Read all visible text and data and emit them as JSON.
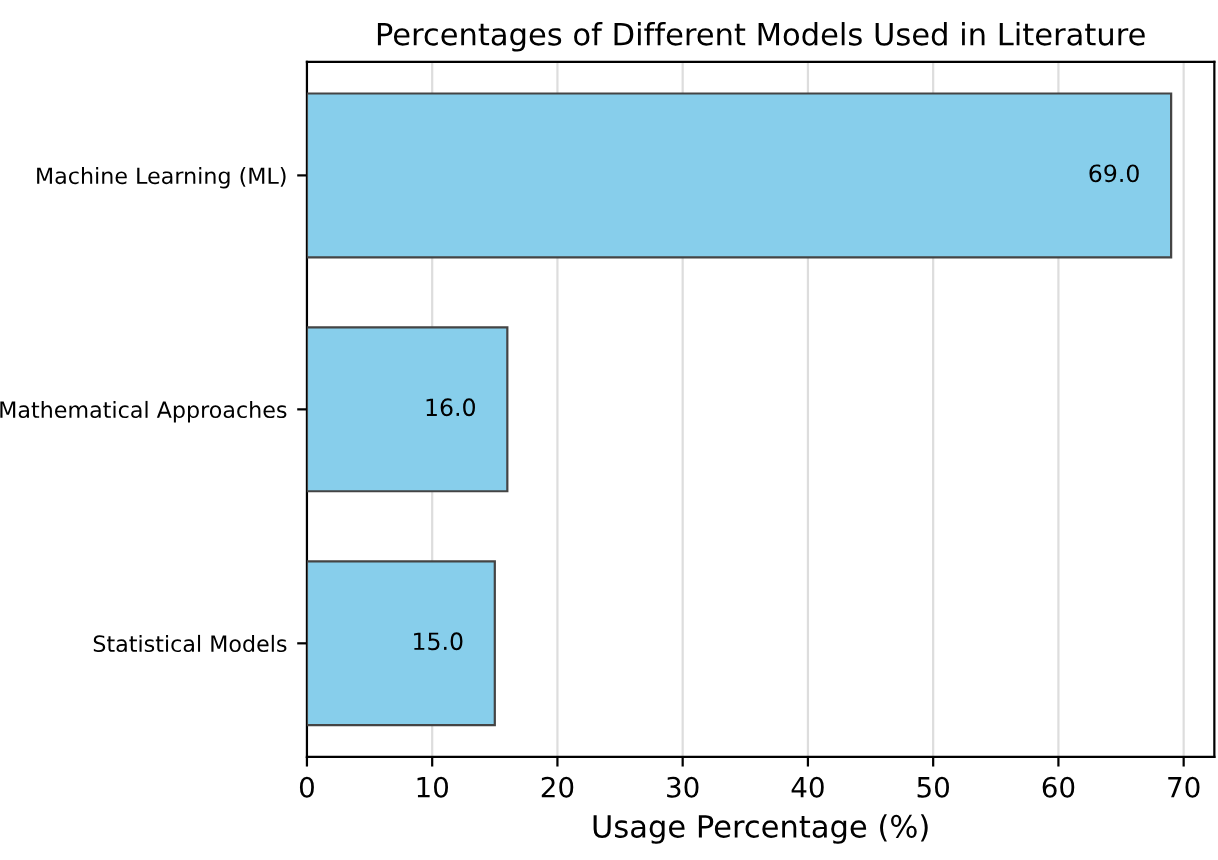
{
  "chart_data": {
    "type": "bar",
    "orientation": "horizontal",
    "title": "Percentages of Different Models Used in Literature",
    "xlabel": "Usage Percentage (%)",
    "categories": [
      "Machine Learning (ML)",
      "Mathematical Approaches",
      "Statistical Models"
    ],
    "values": [
      69.0,
      16.0,
      15.0
    ],
    "value_labels": [
      "69.0",
      "16.0",
      "15.0"
    ],
    "color": "#87ceeb",
    "xlim": [
      0,
      72.45
    ],
    "xticks": [
      0,
      10,
      20,
      30,
      40,
      50,
      60,
      70
    ],
    "grid": "x",
    "legend": false
  }
}
